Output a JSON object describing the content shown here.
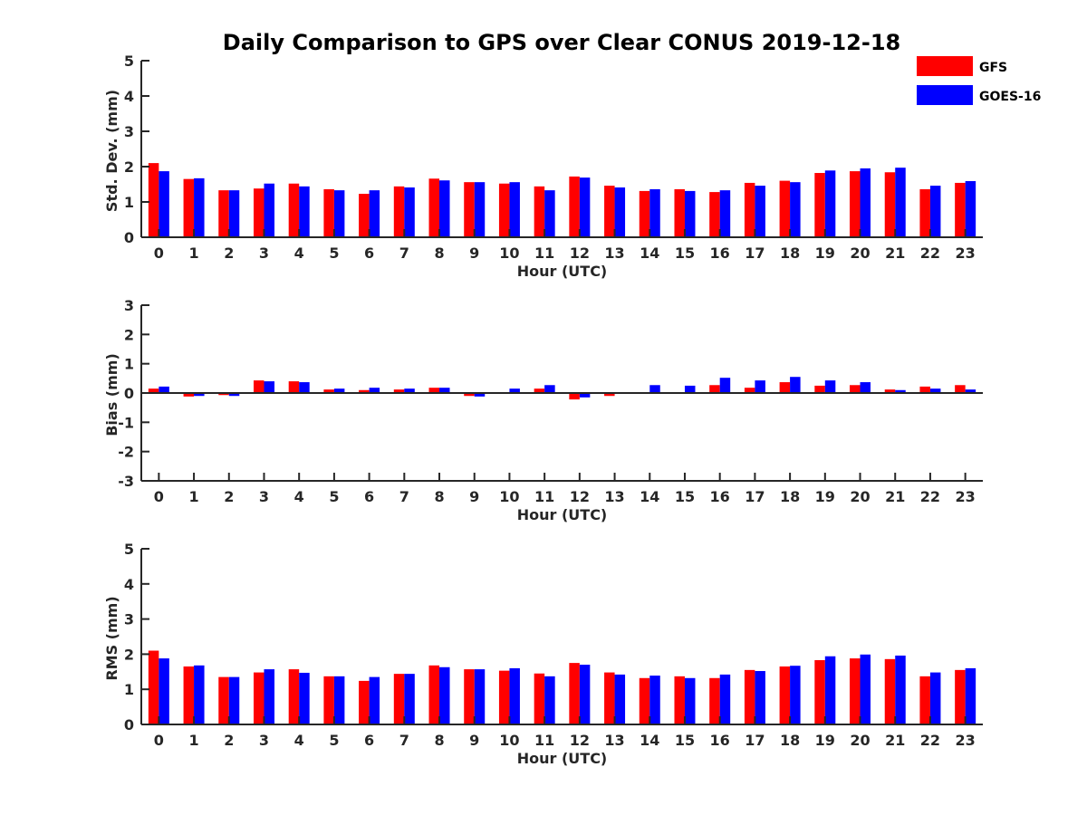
{
  "chart_data": {
    "type": "bar",
    "title": "Daily Comparison to GPS over Clear CONUS 2019-12-18",
    "legend_position": "top-right",
    "categories": [
      "0",
      "1",
      "2",
      "3",
      "4",
      "5",
      "6",
      "7",
      "8",
      "9",
      "10",
      "11",
      "12",
      "13",
      "14",
      "15",
      "16",
      "17",
      "18",
      "19",
      "20",
      "21",
      "22",
      "23"
    ],
    "legend": [
      {
        "name": "GFS",
        "color": "#ff0000"
      },
      {
        "name": "GOES-16",
        "color": "#0000ff"
      }
    ],
    "panels": [
      {
        "id": "std",
        "ylabel": "Std. Dev. (mm)",
        "xlabel": "Hour (UTC)",
        "ylim": [
          0,
          5
        ],
        "yticks": [
          0,
          1,
          2,
          3,
          4,
          5
        ],
        "series": [
          {
            "name": "GFS",
            "color": "#ff0000",
            "values": [
              2.1,
              1.65,
              1.33,
              1.38,
              1.52,
              1.36,
              1.23,
              1.44,
              1.66,
              1.56,
              1.52,
              1.44,
              1.72,
              1.46,
              1.31,
              1.36,
              1.28,
              1.54,
              1.6,
              1.82,
              1.87,
              1.84,
              1.36,
              1.54
            ]
          },
          {
            "name": "GOES-16",
            "color": "#0000ff",
            "values": [
              1.87,
              1.67,
              1.33,
              1.52,
              1.44,
              1.33,
              1.33,
              1.41,
              1.61,
              1.56,
              1.56,
              1.33,
              1.69,
              1.41,
              1.36,
              1.31,
              1.33,
              1.46,
              1.56,
              1.89,
              1.95,
              1.97,
              1.46,
              1.59
            ]
          }
        ]
      },
      {
        "id": "bias",
        "ylabel": "Bias (mm)",
        "xlabel": "Hour (UTC)",
        "ylim": [
          -3,
          3
        ],
        "yticks": [
          -3,
          -2,
          -1,
          0,
          1,
          2,
          3
        ],
        "series": [
          {
            "name": "GFS",
            "color": "#ff0000",
            "values": [
              0.15,
              -0.12,
              -0.07,
              0.43,
              0.4,
              0.12,
              0.1,
              0.12,
              0.18,
              -0.1,
              0.03,
              0.15,
              -0.22,
              -0.1,
              0.03,
              0.0,
              0.27,
              0.18,
              0.37,
              0.25,
              0.27,
              0.12,
              0.22,
              0.27
            ]
          },
          {
            "name": "GOES-16",
            "color": "#0000ff",
            "values": [
              0.22,
              -0.1,
              -0.1,
              0.4,
              0.37,
              0.15,
              0.18,
              0.15,
              0.18,
              -0.12,
              0.15,
              0.27,
              -0.15,
              0.0,
              0.27,
              0.25,
              0.52,
              0.43,
              0.55,
              0.43,
              0.37,
              0.1,
              0.15,
              0.12
            ]
          }
        ]
      },
      {
        "id": "rms",
        "ylabel": "RMS (mm)",
        "xlabel": "Hour (UTC)",
        "ylim": [
          0,
          5
        ],
        "yticks": [
          0,
          1,
          2,
          3,
          4,
          5
        ],
        "series": [
          {
            "name": "GFS",
            "color": "#ff0000",
            "values": [
              2.1,
              1.65,
              1.35,
              1.48,
              1.57,
              1.37,
              1.24,
              1.44,
              1.68,
              1.57,
              1.53,
              1.45,
              1.75,
              1.48,
              1.32,
              1.37,
              1.32,
              1.55,
              1.65,
              1.83,
              1.88,
              1.86,
              1.37,
              1.55
            ]
          },
          {
            "name": "GOES-16",
            "color": "#0000ff",
            "values": [
              1.88,
              1.68,
              1.35,
              1.57,
              1.47,
              1.37,
              1.35,
              1.44,
              1.63,
              1.57,
              1.6,
              1.37,
              1.7,
              1.42,
              1.39,
              1.32,
              1.42,
              1.52,
              1.67,
              1.94,
              1.99,
              1.96,
              1.48,
              1.6
            ]
          }
        ]
      }
    ]
  }
}
